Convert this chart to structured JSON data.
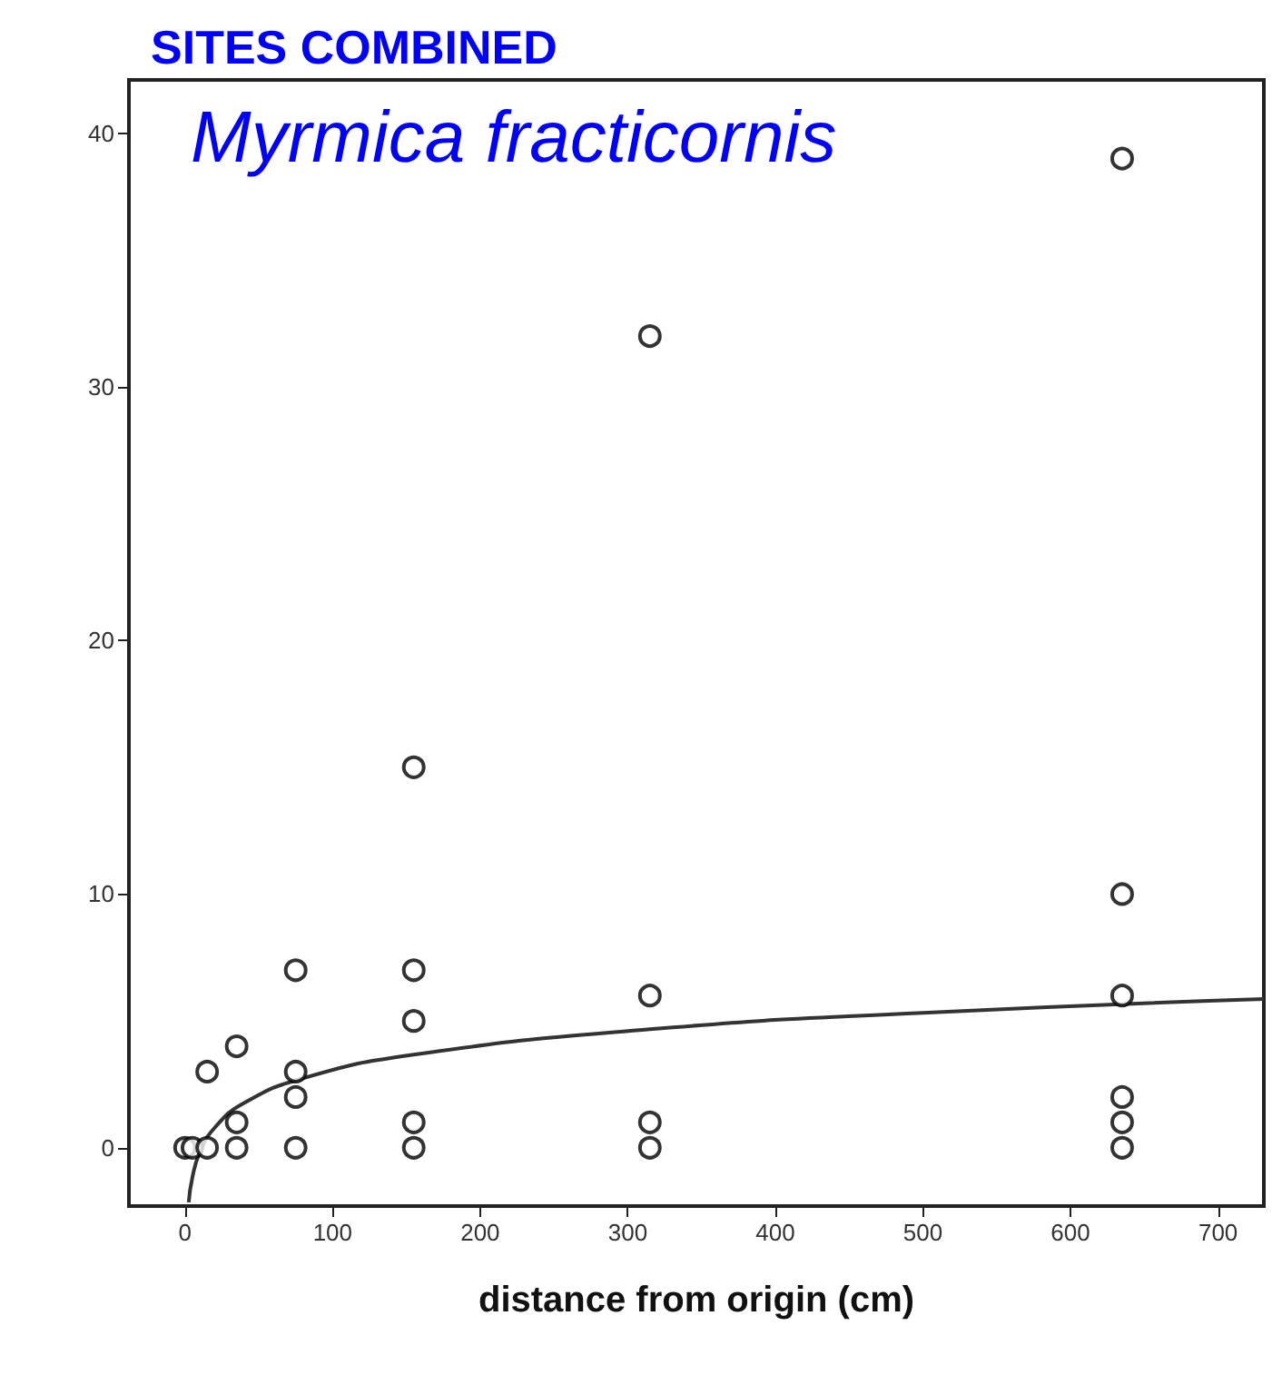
{
  "chart_data": {
    "type": "scatter",
    "title": "SITES COMBINED",
    "annotations": [
      "Myrmica fracticornis"
    ],
    "xlabel": "distance from origin (cm)",
    "series": [
      {
        "color": "#000000",
        "marker": "circle",
        "x": [
          0,
          5,
          15,
          15,
          35,
          35,
          35,
          75,
          75,
          75,
          75,
          155,
          155,
          155,
          155,
          155,
          315,
          315,
          315,
          315,
          635,
          635,
          635,
          635,
          635,
          635
        ],
        "values": [
          0,
          0,
          3,
          0,
          4,
          1,
          0,
          7,
          3,
          2,
          0,
          15,
          7,
          5,
          1,
          0,
          32,
          6,
          1,
          0,
          39,
          10,
          6,
          2,
          1,
          0
        ]
      },
      {
        "type": "line",
        "color": "#333333",
        "marker": "none",
        "x": [
          2.5,
          5,
          10,
          20,
          40,
          80,
          155,
          315,
          500,
          731
        ],
        "values": [
          -2.15,
          -1.17,
          -0.19,
          0.78,
          1.76,
          2.74,
          3.67,
          4.67,
          5.32,
          5.86
        ]
      }
    ],
    "xlim": [
      -38,
      731
    ],
    "xticks": [
      0,
      100,
      200,
      300,
      400,
      500,
      600,
      700
    ],
    "ylim": [
      -2.3,
      42.1
    ],
    "yticks": [
      0,
      10,
      20,
      30,
      40
    ],
    "grid": false
  }
}
